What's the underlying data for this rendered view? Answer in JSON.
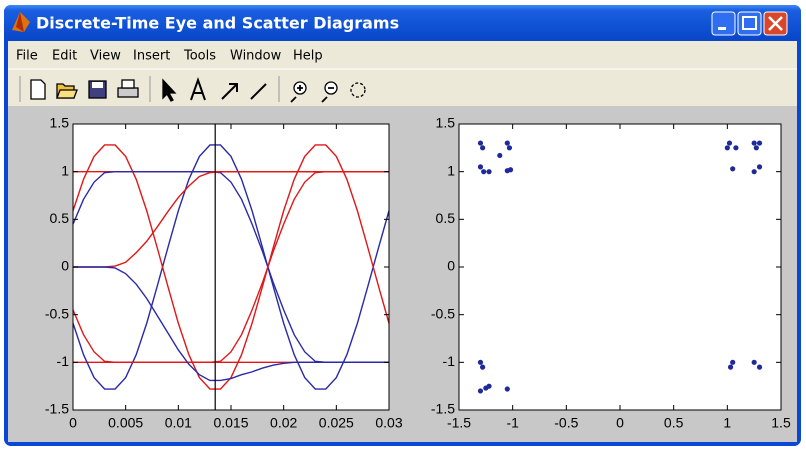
{
  "window": {
    "title": "Discrete-Time Eye and Scatter Diagrams",
    "menu": [
      "File",
      "Edit",
      "View",
      "Insert",
      "Tools",
      "Window",
      "Help"
    ]
  },
  "chart_data": [
    {
      "type": "line",
      "x": [
        0,
        0.001,
        0.002,
        0.003,
        0.004,
        0.005,
        0.006,
        0.007,
        0.008,
        0.009,
        0.01,
        0.011,
        0.012,
        0.013,
        0.014,
        0.015,
        0.016,
        0.017,
        0.018,
        0.019,
        0.02,
        0.021,
        0.022,
        0.023,
        0.024,
        0.025,
        0.026,
        0.027,
        0.028,
        0.029,
        0.03
      ],
      "series": [
        {
          "color": "#e01818",
          "values": [
            1,
            1,
            1,
            1,
            1,
            1,
            1,
            1,
            1,
            1,
            1,
            1,
            1,
            1,
            1,
            1,
            1,
            1,
            1,
            1,
            1,
            1,
            1,
            1,
            1,
            1,
            1,
            1,
            1,
            1,
            1
          ]
        },
        {
          "color": "#e01818",
          "values": [
            -1,
            -1,
            -1,
            -1,
            -1,
            -1,
            -1,
            -1,
            -1,
            -1,
            -1,
            -1,
            -1,
            -1,
            -1,
            -1,
            -1,
            -1,
            -1,
            -1,
            -1,
            -1,
            -1,
            -1,
            -1,
            -1,
            -1,
            -1,
            -1,
            -1,
            -1
          ]
        },
        {
          "color": "#2a2aa8",
          "values": [
            -0.59,
            -0.92,
            -1.16,
            -1.28,
            -1.28,
            -1.16,
            -0.92,
            -0.59,
            -0.2,
            0.2,
            0.59,
            0.92,
            1.16,
            1.28,
            1.28,
            1.16,
            0.92,
            0.59,
            0.2,
            -0.2,
            -0.59,
            -0.92,
            -1.16,
            -1.28,
            -1.28,
            -1.16,
            -0.92,
            -0.59,
            -0.2,
            0.2,
            0.59
          ]
        },
        {
          "color": "#e01818",
          "values": [
            0.59,
            0.92,
            1.16,
            1.28,
            1.28,
            1.16,
            0.92,
            0.59,
            0.2,
            -0.2,
            -0.59,
            -0.92,
            -1.16,
            -1.28,
            -1.28,
            -1.16,
            -0.92,
            -0.59,
            -0.2,
            0.2,
            0.59,
            0.92,
            1.16,
            1.28,
            1.28,
            1.16,
            0.92,
            0.59,
            0.2,
            -0.2,
            -0.59
          ]
        },
        {
          "color": "#2a2aa8",
          "values": [
            0.45,
            0.71,
            0.89,
            0.99,
            1,
            1,
            1,
            1,
            1,
            1,
            1,
            1,
            1,
            1,
            0.99,
            0.89,
            0.71,
            0.45,
            0.16,
            -0.16,
            -0.45,
            -0.71,
            -0.89,
            -0.99,
            -1,
            -1,
            -1,
            -1,
            -1,
            -1,
            -1
          ]
        },
        {
          "color": "#e01818",
          "values": [
            -0.45,
            -0.71,
            -0.89,
            -0.99,
            -1,
            -1,
            -1,
            -1,
            -1,
            -1,
            -1,
            -1,
            -1,
            -1,
            -0.99,
            -0.89,
            -0.71,
            -0.45,
            -0.16,
            0.16,
            0.45,
            0.71,
            0.89,
            0.99,
            1,
            1,
            1,
            1,
            1,
            1,
            1
          ]
        },
        {
          "color": "#e01818",
          "values": [
            0,
            0,
            0,
            0,
            0.01,
            0.05,
            0.15,
            0.27,
            0.42,
            0.58,
            0.73,
            0.85,
            0.95,
            0.99,
            1,
            1,
            1,
            1,
            1,
            1,
            1,
            1,
            1,
            1,
            1,
            1,
            1,
            1,
            1,
            1,
            1
          ]
        },
        {
          "color": "#2a2aa8",
          "values": [
            0,
            0,
            0,
            0,
            -0.01,
            -0.07,
            -0.18,
            -0.33,
            -0.51,
            -0.69,
            -0.87,
            -1.02,
            -1.13,
            -1.19,
            -1.19,
            -1.17,
            -1.13,
            -1.1,
            -1.06,
            -1.03,
            -1.01,
            -1,
            -1,
            -1,
            -1,
            -1,
            -1,
            -1,
            -1,
            -1,
            -1
          ]
        }
      ],
      "vline": 0.0135,
      "xlim": [
        0,
        0.03
      ],
      "xticks": [
        0,
        0.005,
        0.01,
        0.015,
        0.02,
        0.025,
        0.03
      ],
      "ylim": [
        -1.5,
        1.5
      ],
      "yticks": [
        -1.5,
        -1,
        -0.5,
        0,
        0.5,
        1,
        1.5
      ]
    },
    {
      "type": "scatter",
      "series": [
        {
          "color": "#1f2a9a",
          "x": [
            -1.3,
            -1.28,
            -1.3,
            -1.27,
            -1.22,
            -1.12,
            -1.05,
            -1.03,
            -1.05,
            -1.02,
            1.02,
            1,
            1.05,
            1.08,
            1.25,
            1.3,
            1.27,
            1.3,
            1.25,
            -1.3,
            -1.28,
            -1.3,
            -1.25,
            -1.22,
            -1.05,
            1.05,
            1.03,
            1.25,
            1.3
          ],
          "values": [
            1.3,
            1.25,
            1.05,
            1,
            1,
            1.17,
            1.3,
            1.25,
            1.01,
            1.02,
            1.3,
            1.25,
            1.03,
            1.25,
            1.3,
            1.3,
            1.25,
            1.05,
            1,
            -1,
            -1.05,
            -1.3,
            -1.27,
            -1.25,
            -1.28,
            -1,
            -1.05,
            -1,
            -1.05
          ]
        }
      ],
      "xlim": [
        -1.5,
        1.5
      ],
      "xticks": [
        -1.5,
        -1,
        -0.5,
        0,
        0.5,
        1,
        1.5
      ],
      "ylim": [
        -1.5,
        1.5
      ],
      "yticks": [
        -1.5,
        -1,
        -0.5,
        0,
        0.5,
        1,
        1.5
      ]
    }
  ]
}
